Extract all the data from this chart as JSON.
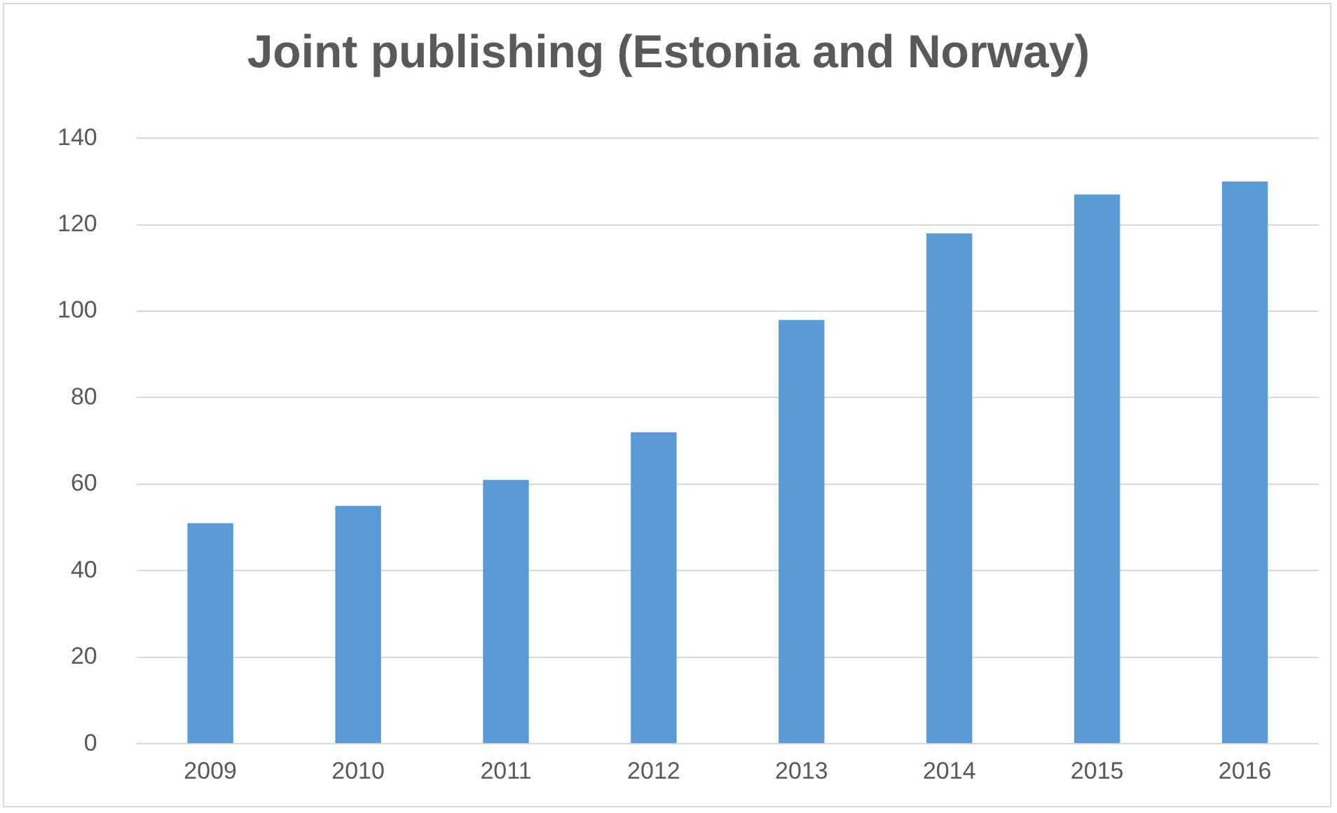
{
  "chart_data": {
    "type": "bar",
    "title": "Joint publishing (Estonia and Norway)",
    "categories": [
      "2009",
      "2010",
      "2011",
      "2012",
      "2013",
      "2014",
      "2015",
      "2016"
    ],
    "values": [
      51,
      55,
      61,
      72,
      98,
      118,
      127,
      130
    ],
    "color": "#5b9bd5",
    "ylim": [
      0,
      140
    ],
    "yticks": [
      0,
      20,
      40,
      60,
      80,
      100,
      120,
      140
    ],
    "grid": "y",
    "legend": false
  }
}
